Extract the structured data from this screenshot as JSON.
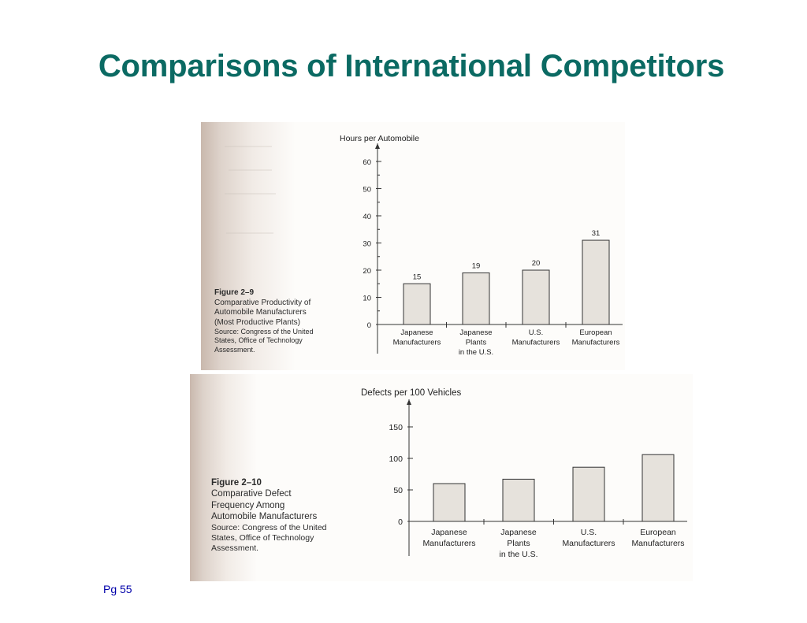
{
  "slide": {
    "title": "Comparisons of International Competitors",
    "page_number": "Pg 55"
  },
  "figures": [
    {
      "figure_label": "Figure 2–9",
      "caption_lines": [
        "Comparative Productivity of",
        "Automobile Manufacturers",
        "(Most Productive Plants)"
      ],
      "source_lines": [
        "Source: Congress of the United",
        "States, Office of Technology",
        "Assessment."
      ]
    },
    {
      "figure_label": "Figure 2–10",
      "caption_lines": [
        "Comparative Defect",
        "Frequency Among",
        "Automobile Manufacturers"
      ],
      "source_lines": [
        "Source: Congress of the United",
        "States, Office of Technology",
        "Assessment."
      ]
    }
  ],
  "chart_data": [
    {
      "type": "bar",
      "ylabel": "Hours per Automobile",
      "xlabel": "",
      "categories": [
        [
          "Japanese",
          "Manufacturers"
        ],
        [
          "Japanese",
          "Plants",
          "in the U.S."
        ],
        [
          "U.S.",
          "Manufacturers"
        ],
        [
          "European",
          "Manufacturers"
        ]
      ],
      "values": [
        15,
        19,
        20,
        31
      ],
      "data_labels": [
        "15",
        "19",
        "20",
        "31"
      ],
      "ylim": [
        0,
        60
      ],
      "yticks": [
        0,
        10,
        20,
        30,
        40,
        50,
        60
      ],
      "minor_ticks": true,
      "grid": false,
      "bar_color": "#e6e2dc"
    },
    {
      "type": "bar",
      "ylabel": "Defects per 100 Vehicles",
      "xlabel": "",
      "categories": [
        [
          "Japanese",
          "Manufacturers"
        ],
        [
          "Japanese",
          "Plants",
          "in the U.S."
        ],
        [
          "U.S.",
          "Manufacturers"
        ],
        [
          "European",
          "Manufacturers"
        ]
      ],
      "values": [
        60,
        67,
        86,
        106
      ],
      "ylim": [
        0,
        150
      ],
      "yticks": [
        0,
        50,
        100,
        150
      ],
      "grid": false,
      "bar_color": "#e6e2dc"
    }
  ]
}
